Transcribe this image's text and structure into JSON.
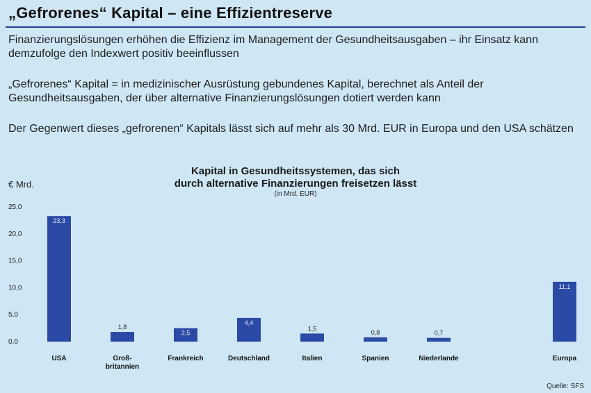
{
  "header": {
    "title": "„Gefrorenes“ Kapital – eine Effizientreserve"
  },
  "text": {
    "p1": "Finanzierungslösungen erhöhen die Effizienz im Management der Gesundheitsausgaben – ihr Einsatz kann demzufolge den Indexwert positiv beeinflussen",
    "p2": "„Gefrorenes“ Kapital = in medizinischer Ausrüstung gebundenes Kapital, berechnet als Anteil der Gesundheitsausgaben, der über alternative Finanzierungslösungen dotiert werden kann",
    "p3": "Der Gegenwert dieses „gefrorenen“ Kapitals lässt sich auf mehr als 30 Mrd. EUR in Europa und den USA schätzen"
  },
  "source": "Quelle: SFS",
  "colors": {
    "bar": "#2b4aa6",
    "background": "#cfe7f5",
    "rule": "#1f3f91"
  },
  "chart_data": {
    "type": "bar",
    "title_line1": "Kapital in Gesundheitssystemen, das sich",
    "title_line2": "durch alternative Finanzierungen freisetzen lässt",
    "subtitle": "(in Mrd. EUR)",
    "ylabel": "€ Mrd.",
    "ylim": [
      0,
      25
    ],
    "yticks": [
      "0,0",
      "5,0",
      "10,0",
      "15,0",
      "20,0",
      "25,0"
    ],
    "ytick_values": [
      0,
      5,
      10,
      15,
      20,
      25
    ],
    "grid": false,
    "categories": [
      "USA",
      "Groß-\nbritannien",
      "Frankreich",
      "Deutschland",
      "Italien",
      "Spanien",
      "Niederlande",
      "Europa"
    ],
    "values": [
      23.3,
      1.8,
      2.5,
      4.4,
      1.5,
      0.8,
      0.7,
      11.1
    ],
    "value_labels": [
      "23,3",
      "1,8",
      "2,5",
      "4,4",
      "1,5",
      "0,8",
      "0,7",
      "11,1"
    ]
  }
}
